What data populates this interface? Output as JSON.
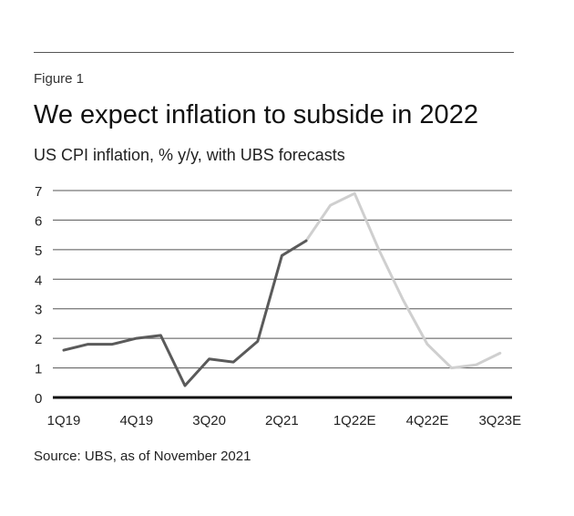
{
  "figure": {
    "label": "Figure 1",
    "title": "We expect inflation to subside in 2022",
    "subtitle": "US CPI inflation, % y/y, with UBS forecasts",
    "source": "Source: UBS, as of November 2021"
  },
  "colors": {
    "actual": "#5a5a5a",
    "forecast": "#cfcfcf",
    "grid": "#555555",
    "axis": "#111111",
    "text": "#222222"
  },
  "chart_data": {
    "type": "line",
    "title": "We expect inflation to subside in 2022",
    "subtitle": "US CPI inflation, % y/y, with UBS forecasts",
    "xlabel": "",
    "ylabel": "",
    "ylim": [
      0,
      7
    ],
    "yticks": [
      0,
      1,
      2,
      3,
      4,
      5,
      6,
      7
    ],
    "grid": true,
    "x": [
      "1Q19",
      "2Q19",
      "3Q19",
      "4Q19",
      "1Q20",
      "2Q20",
      "3Q20",
      "4Q20",
      "1Q21",
      "2Q21",
      "3Q21",
      "4Q21E",
      "1Q22E",
      "2Q22E",
      "3Q22E",
      "4Q22E",
      "1Q23E",
      "2Q23E",
      "3Q23E"
    ],
    "xtick_labels": [
      "1Q19",
      "4Q19",
      "3Q20",
      "2Q21",
      "1Q22E",
      "4Q22E",
      "3Q23E"
    ],
    "series": [
      {
        "name": "",
        "role": "actual",
        "x": [
          "1Q19",
          "2Q19",
          "3Q19",
          "4Q19",
          "1Q20",
          "2Q20",
          "3Q20",
          "4Q20",
          "1Q21",
          "2Q21",
          "3Q21"
        ],
        "values": [
          1.6,
          1.8,
          1.8,
          2.0,
          2.1,
          0.4,
          1.3,
          1.2,
          1.9,
          4.8,
          5.3
        ]
      },
      {
        "name": "",
        "role": "forecast",
        "x": [
          "3Q21",
          "4Q21E",
          "1Q22E",
          "2Q22E",
          "3Q22E",
          "4Q22E",
          "1Q23E",
          "2Q23E",
          "3Q23E"
        ],
        "values": [
          5.3,
          6.5,
          6.9,
          5.0,
          3.3,
          1.8,
          1.0,
          1.1,
          1.5
        ]
      }
    ]
  }
}
